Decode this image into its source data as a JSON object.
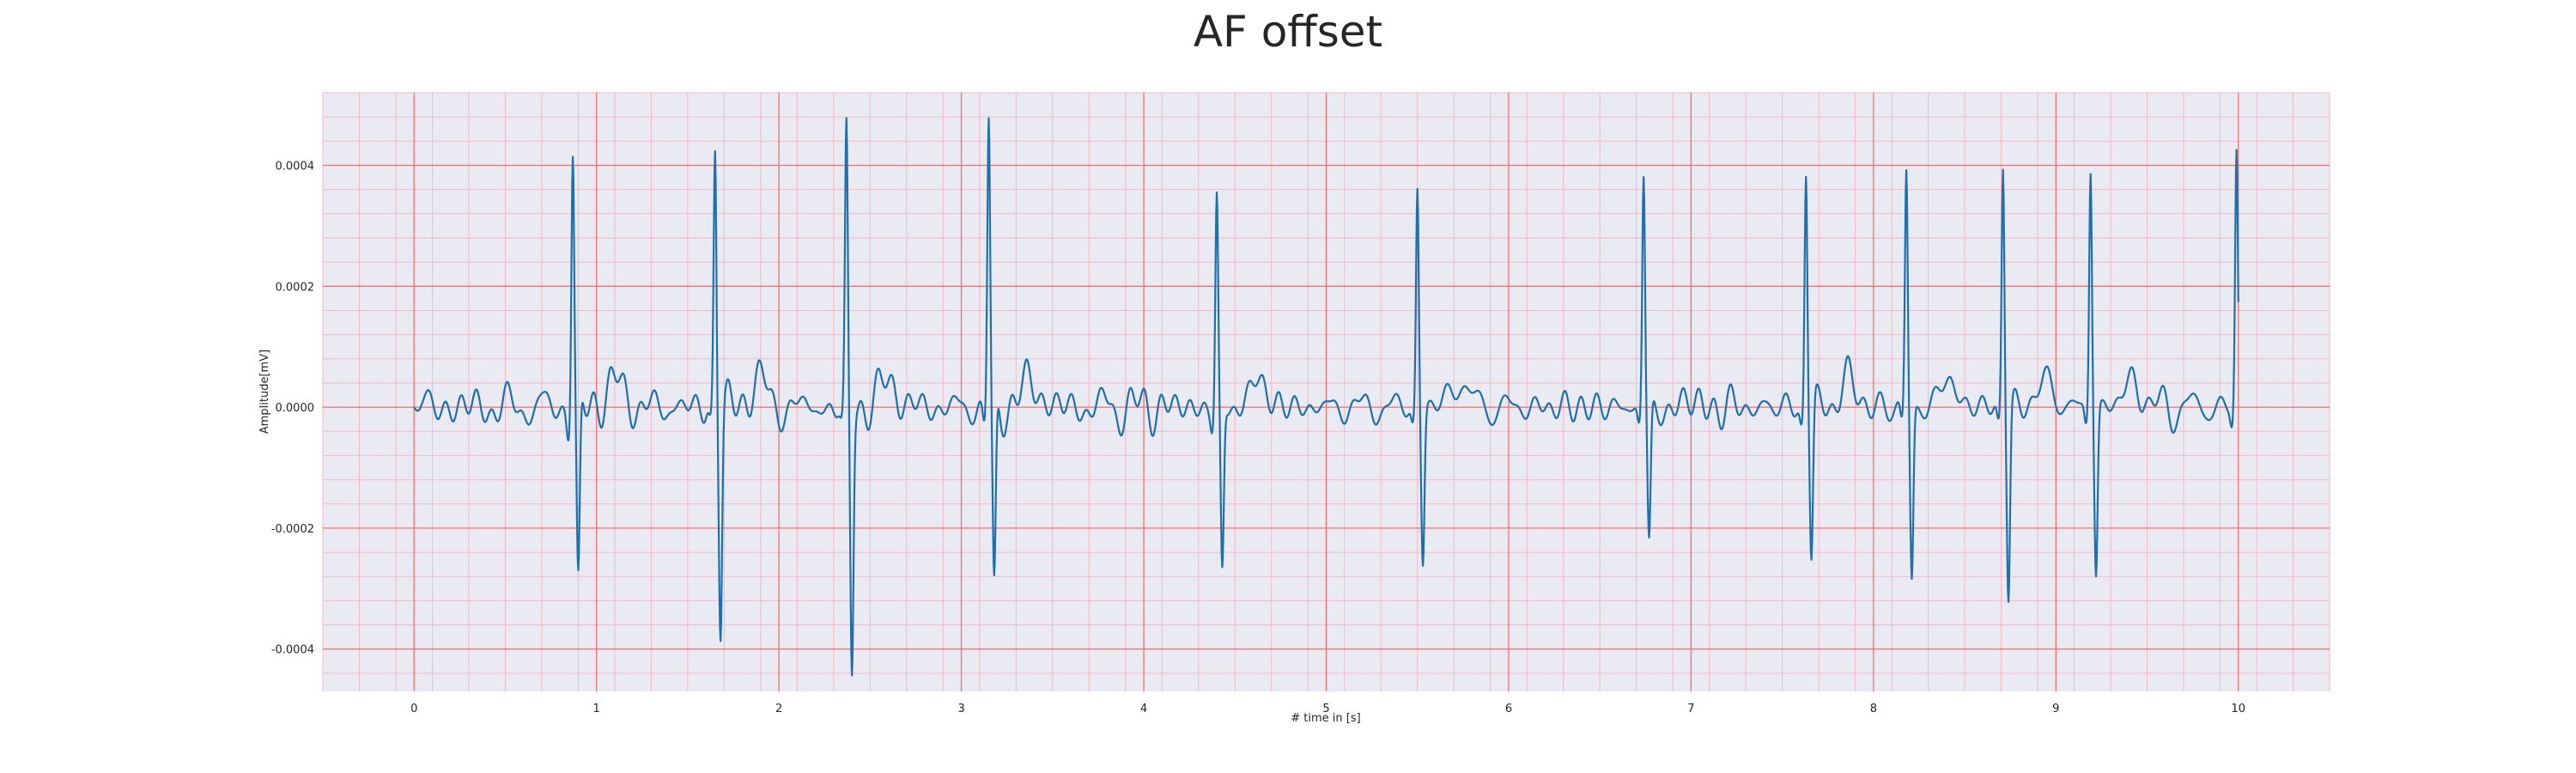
{
  "chart_data": {
    "type": "line",
    "title": "AF offset",
    "xlabel": "# time in [s]",
    "ylabel": "Amplitude[mV]",
    "xlim": [
      -0.5,
      10.5
    ],
    "ylim": [
      -0.00047,
      0.00052
    ],
    "xticks": [
      0,
      1,
      2,
      3,
      4,
      5,
      6,
      7,
      8,
      9,
      10
    ],
    "xtick_labels": [
      "0",
      "1",
      "2",
      "3",
      "4",
      "5",
      "6",
      "7",
      "8",
      "9",
      "10"
    ],
    "yticks": [
      -0.0004,
      -0.0002,
      0.0,
      0.0002,
      0.0004
    ],
    "ytick_labels": [
      "-0.0004",
      "-0.0002",
      "0.0000",
      "0.0002",
      "0.0004"
    ],
    "grid": true,
    "minor_grid": true,
    "colors": {
      "line": "#1f6fa8",
      "major_grid": "#f07070",
      "minor_grid": "#f3b7c4",
      "background": "#eaeaf2"
    },
    "sampling_rate_hz": 300,
    "duration_s": 10,
    "beats": [
      {
        "t": 0.87,
        "r": 0.00043,
        "s": -0.00031
      },
      {
        "t": 1.65,
        "r": 0.00043,
        "s": -0.000355
      },
      {
        "t": 2.37,
        "r": 0.000445,
        "s": -0.00043
      },
      {
        "t": 3.15,
        "r": 0.000475,
        "s": -0.000315
      },
      {
        "t": 4.4,
        "r": 0.00034,
        "s": -0.00028
      },
      {
        "t": 5.5,
        "r": 0.000365,
        "s": -0.00025
      },
      {
        "t": 6.74,
        "r": 0.000385,
        "s": -0.000225
      },
      {
        "t": 7.63,
        "r": 0.0004,
        "s": -0.00025
      },
      {
        "t": 8.18,
        "r": 0.00039,
        "s": -0.000285
      },
      {
        "t": 8.71,
        "r": 0.00041,
        "s": -0.00031
      },
      {
        "t": 9.19,
        "r": 0.0004,
        "s": -0.00027
      },
      {
        "t": 9.99,
        "r": 0.00042,
        "s": -6e-05
      }
    ]
  }
}
